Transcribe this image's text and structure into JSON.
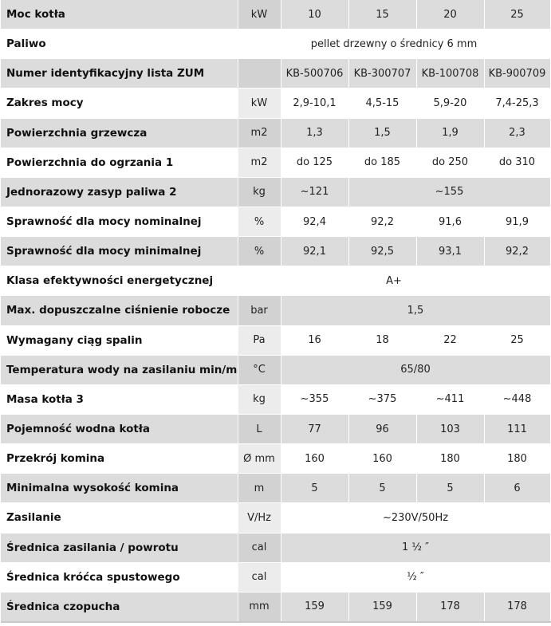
{
  "rows": [
    {
      "label": "Moc kotła",
      "unit": "kW",
      "cells": [
        {
          "v": "10",
          "span": 1
        },
        {
          "v": "15",
          "span": 1
        },
        {
          "v": "20",
          "span": 1
        },
        {
          "v": "25",
          "span": 1
        }
      ]
    },
    {
      "label": "Paliwo",
      "unit": "",
      "merge_unit": true,
      "cells": [
        {
          "v": "pellet drzewny o średnicy 6 mm",
          "span": 4
        }
      ]
    },
    {
      "label": "Numer identyfikacyjny lista ZUM",
      "unit": "",
      "cells": [
        {
          "v": "KB-500706",
          "span": 1
        },
        {
          "v": "KB-300707",
          "span": 1
        },
        {
          "v": "KB-100708",
          "span": 1
        },
        {
          "v": "KB-900709",
          "span": 1
        }
      ]
    },
    {
      "label": "Zakres mocy",
      "unit": "kW",
      "cells": [
        {
          "v": "2,9-10,1",
          "span": 1
        },
        {
          "v": "4,5-15",
          "span": 1
        },
        {
          "v": "5,9-20",
          "span": 1
        },
        {
          "v": "7,4-25,3",
          "span": 1
        }
      ]
    },
    {
      "label": "Powierzchnia grzewcza",
      "unit": "m2",
      "cells": [
        {
          "v": "1,3",
          "span": 1
        },
        {
          "v": "1,5",
          "span": 1
        },
        {
          "v": "1,9",
          "span": 1
        },
        {
          "v": "2,3",
          "span": 1
        }
      ]
    },
    {
      "label": "Powierzchnia do ogrzania 1",
      "unit": "m2",
      "cells": [
        {
          "v": "do 125",
          "span": 1
        },
        {
          "v": "do 185",
          "span": 1
        },
        {
          "v": "do 250",
          "span": 1
        },
        {
          "v": "do 310",
          "span": 1
        }
      ]
    },
    {
      "label": "Jednorazowy zasyp paliwa 2",
      "unit": "kg",
      "cells": [
        {
          "v": "~121",
          "span": 1
        },
        {
          "v": "~155",
          "span": 3
        }
      ]
    },
    {
      "label": "Sprawność dla mocy nominalnej",
      "unit": "%",
      "cells": [
        {
          "v": "92,4",
          "span": 1
        },
        {
          "v": "92,2",
          "span": 1
        },
        {
          "v": "91,6",
          "span": 1
        },
        {
          "v": "91,9",
          "span": 1
        }
      ]
    },
    {
      "label": "Sprawność dla mocy minimalnej",
      "unit": "%",
      "cells": [
        {
          "v": "92,1",
          "span": 1
        },
        {
          "v": "92,5",
          "span": 1
        },
        {
          "v": "93,1",
          "span": 1
        },
        {
          "v": "92,2",
          "span": 1
        }
      ]
    },
    {
      "label": "Klasa efektywności energetycznej",
      "unit": "",
      "merge_unit": true,
      "cells": [
        {
          "v": "A+",
          "span": 4
        }
      ]
    },
    {
      "label": "Max. dopuszczalne ciśnienie robocze",
      "unit": "bar",
      "cells": [
        {
          "v": "1,5",
          "span": 4
        }
      ]
    },
    {
      "label": "Wymagany ciąg spalin",
      "unit": "Pa",
      "cells": [
        {
          "v": "16",
          "span": 1
        },
        {
          "v": "18",
          "span": 1
        },
        {
          "v": "22",
          "span": 1
        },
        {
          "v": "25",
          "span": 1
        }
      ]
    },
    {
      "label": "Temperatura wody na zasilaniu min/max.",
      "unit": "°C",
      "cells": [
        {
          "v": "65/80",
          "span": 4
        }
      ]
    },
    {
      "label": "Masa kotła 3",
      "unit": "kg",
      "cells": [
        {
          "v": "~355",
          "span": 1
        },
        {
          "v": "~375",
          "span": 1
        },
        {
          "v": "~411",
          "span": 1
        },
        {
          "v": "~448",
          "span": 1
        }
      ]
    },
    {
      "label": "Pojemność wodna kotła",
      "unit": "L",
      "cells": [
        {
          "v": "77",
          "span": 1
        },
        {
          "v": "96",
          "span": 1
        },
        {
          "v": "103",
          "span": 1
        },
        {
          "v": "111",
          "span": 1
        }
      ]
    },
    {
      "label": "Przekrój komina",
      "unit": "Ø mm",
      "cells": [
        {
          "v": "160",
          "span": 1
        },
        {
          "v": "160",
          "span": 1
        },
        {
          "v": "180",
          "span": 1
        },
        {
          "v": "180",
          "span": 1
        }
      ]
    },
    {
      "label": "Minimalna wysokość komina",
      "unit": "m",
      "cells": [
        {
          "v": "5",
          "span": 1
        },
        {
          "v": "5",
          "span": 1
        },
        {
          "v": "5",
          "span": 1
        },
        {
          "v": "6",
          "span": 1
        }
      ]
    },
    {
      "label": "Zasilanie",
      "unit": "V/Hz",
      "cells": [
        {
          "v": "~230V/50Hz",
          "span": 4
        }
      ]
    },
    {
      "label": "Średnica zasilania / powrotu",
      "unit": "cal",
      "cells": [
        {
          "v": "1 ½ ″",
          "span": 4
        }
      ]
    },
    {
      "label": "Średnica króćca spustowego",
      "unit": "cal",
      "cells": [
        {
          "v": "½ ″",
          "span": 4
        }
      ]
    },
    {
      "label": "Średnica czopucha",
      "unit": "mm",
      "cells": [
        {
          "v": "159",
          "span": 1
        },
        {
          "v": "159",
          "span": 1
        },
        {
          "v": "178",
          "span": 1
        },
        {
          "v": "178",
          "span": 1
        }
      ]
    }
  ]
}
